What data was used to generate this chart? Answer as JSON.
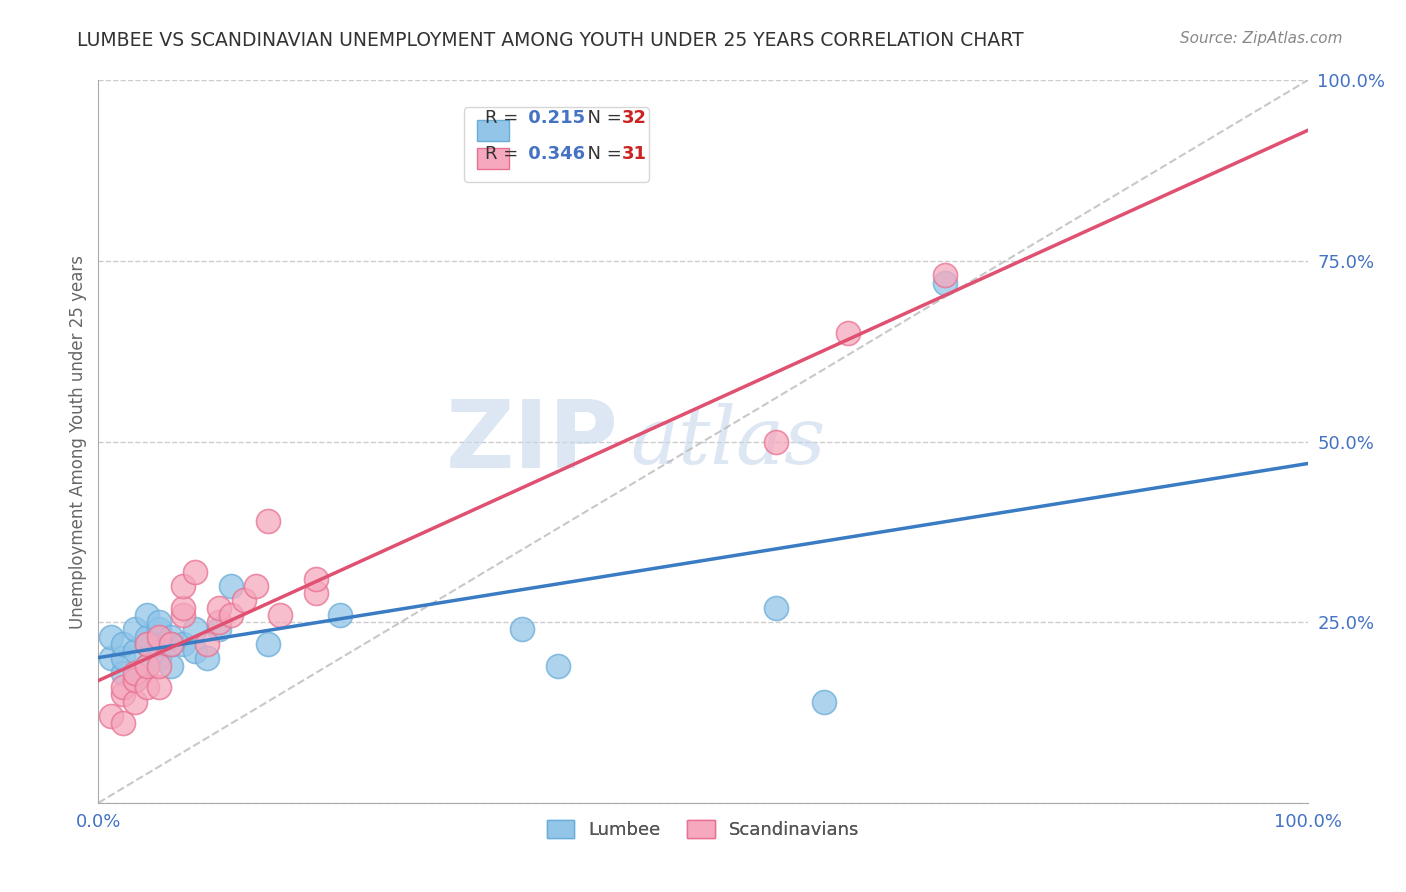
{
  "title": "LUMBEE VS SCANDINAVIAN UNEMPLOYMENT AMONG YOUTH UNDER 25 YEARS CORRELATION CHART",
  "source": "Source: ZipAtlas.com",
  "ylabel": "Unemployment Among Youth under 25 years",
  "xlabel": "",
  "watermark_zip": "ZIP",
  "watermark_atlas": "atlas",
  "lumbee_color": "#92C5E8",
  "lumbee_edge_color": "#6AADD8",
  "scandinavian_color": "#F5A8BE",
  "scandinavian_edge_color": "#E87090",
  "lumbee_line_color": "#3A7CC4",
  "scandinavian_line_color": "#E05070",
  "diag_line_color": "#BBBBBB",
  "lumbee_R": 0.215,
  "lumbee_N": 32,
  "scandinavian_R": 0.346,
  "scandinavian_N": 31,
  "lumbee_x": [
    0.01,
    0.01,
    0.02,
    0.02,
    0.02,
    0.03,
    0.03,
    0.03,
    0.04,
    0.04,
    0.04,
    0.04,
    0.05,
    0.05,
    0.05,
    0.05,
    0.06,
    0.06,
    0.06,
    0.07,
    0.08,
    0.08,
    0.09,
    0.1,
    0.11,
    0.14,
    0.2,
    0.35,
    0.38,
    0.56,
    0.6,
    0.7
  ],
  "lumbee_y": [
    0.2,
    0.23,
    0.18,
    0.2,
    0.22,
    0.17,
    0.21,
    0.24,
    0.19,
    0.22,
    0.23,
    0.26,
    0.2,
    0.22,
    0.24,
    0.25,
    0.19,
    0.22,
    0.23,
    0.22,
    0.21,
    0.24,
    0.2,
    0.24,
    0.3,
    0.22,
    0.26,
    0.24,
    0.19,
    0.27,
    0.14,
    0.72
  ],
  "scandinavian_x": [
    0.01,
    0.02,
    0.02,
    0.02,
    0.03,
    0.03,
    0.03,
    0.04,
    0.04,
    0.04,
    0.05,
    0.05,
    0.05,
    0.06,
    0.07,
    0.07,
    0.07,
    0.08,
    0.09,
    0.1,
    0.1,
    0.11,
    0.12,
    0.13,
    0.14,
    0.15,
    0.18,
    0.18,
    0.56,
    0.62,
    0.7
  ],
  "scandinavian_y": [
    0.12,
    0.11,
    0.15,
    0.16,
    0.14,
    0.17,
    0.18,
    0.16,
    0.19,
    0.22,
    0.16,
    0.19,
    0.23,
    0.22,
    0.26,
    0.27,
    0.3,
    0.32,
    0.22,
    0.25,
    0.27,
    0.26,
    0.28,
    0.3,
    0.39,
    0.26,
    0.29,
    0.31,
    0.5,
    0.65,
    0.73
  ],
  "xlim": [
    0.0,
    1.0
  ],
  "ylim": [
    0.0,
    1.0
  ],
  "y_ticks": [
    0.0,
    0.25,
    0.5,
    0.75,
    1.0
  ],
  "y_tick_labels": [
    "",
    "25.0%",
    "50.0%",
    "75.0%",
    "100.0%"
  ],
  "grid_color": "#CCCCCC",
  "background_color": "#FFFFFF",
  "title_color": "#333333",
  "axis_label_color": "#666666",
  "tick_color": "#4472C4",
  "legend_R_color": "#1155BB",
  "legend_N_color": "#CC2222"
}
